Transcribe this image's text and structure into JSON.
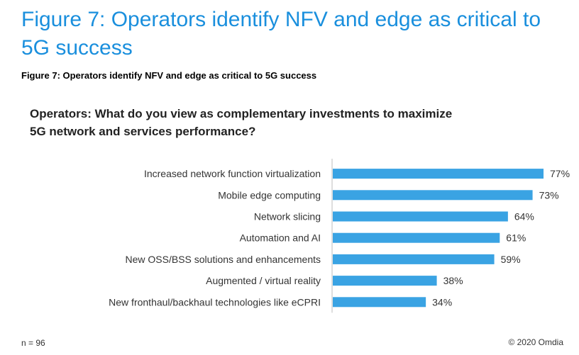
{
  "heading": "Figure 7: Operators identify NFV and edge as critical to 5G success",
  "caption": "Figure 7: Operators identify NFV and edge as critical to 5G success",
  "question": "Operators: What do you view as complementary investments to maximize 5G network and services performance?",
  "footnote": "n = 96",
  "copyright": "© 2020 Omdia",
  "colors": {
    "bar": "#3aa3e3",
    "axis": "#bdbdbd",
    "heading": "#1a8fdd",
    "text": "#333333"
  },
  "chart_data": {
    "type": "bar",
    "orientation": "horizontal",
    "categories": [
      "Increased network function virtualization",
      "Mobile edge computing",
      "Network slicing",
      "Automation and AI",
      "New OSS/BSS solutions and enhancements",
      "Augmented / virtual reality",
      "New fronthaul/backhaul technologies like eCPRI"
    ],
    "values": [
      77,
      73,
      64,
      61,
      59,
      38,
      34
    ],
    "value_labels": [
      "77%",
      "73%",
      "64%",
      "61%",
      "59%",
      "38%",
      "34%"
    ],
    "title": "Operators: What do you view as complementary investments to maximize 5G network and services performance?",
    "xlim": [
      0,
      80
    ],
    "grid": false,
    "legend": "none"
  }
}
